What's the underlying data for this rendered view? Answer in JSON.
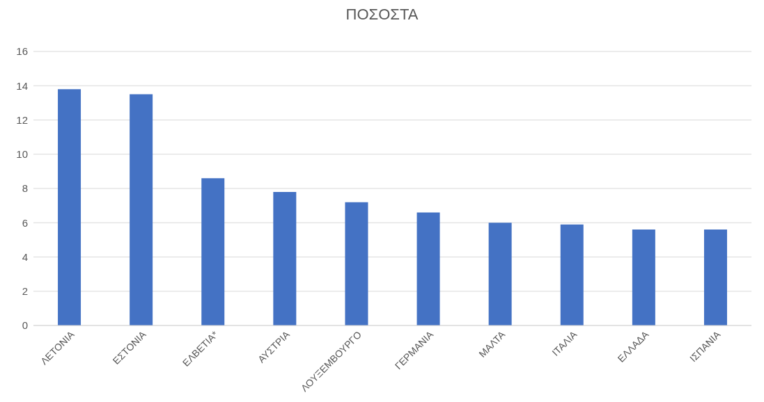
{
  "chart_data": {
    "type": "bar",
    "title": "ΠΟΣΟΣΤΑ",
    "categories": [
      "ΛΕΤΟΝΙΑ",
      "ΕΣΤΟΝΙΑ",
      "ΕΛΒΕΤΙΑ*",
      "ΑΥΣΤΡΙΑ",
      "ΛΟΥΞΕΜΒΟΥΡΓΟ",
      "ΓΕΡΜΑΝΙΑ",
      "ΜΑΛΤΑ",
      "ΙΤΑΛΙΑ",
      "ΕΛΛΑΔΑ",
      "ΙΣΠΑΝΙΑ"
    ],
    "values": [
      13.8,
      13.5,
      8.6,
      7.8,
      7.2,
      6.6,
      6.0,
      5.9,
      5.6,
      5.6
    ],
    "color": "#4472c4",
    "ylim": [
      0,
      16
    ],
    "yticks": [
      0,
      2,
      4,
      6,
      8,
      10,
      12,
      14,
      16
    ],
    "grid": "y",
    "legend": false
  }
}
